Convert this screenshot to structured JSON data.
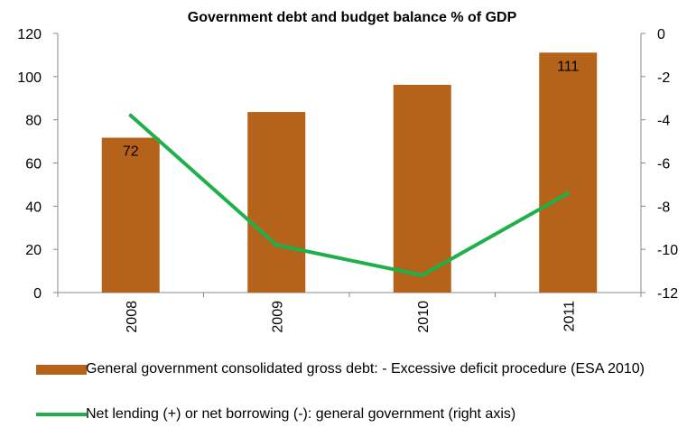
{
  "chart_data": {
    "type": "bar+line",
    "title": "Government debt and budget balance % of GDP",
    "categories": [
      "2008",
      "2009",
      "2010",
      "2011"
    ],
    "left_axis": {
      "ylim": [
        0,
        120
      ],
      "ticks": [
        "0",
        "20",
        "40",
        "60",
        "80",
        "100",
        "120"
      ]
    },
    "right_axis": {
      "ylim": [
        -12,
        0
      ],
      "ticks": [
        "-12",
        "-10",
        "-8",
        "-6",
        "-4",
        "-2",
        "0"
      ]
    },
    "series": [
      {
        "name": "General government consolidated gross debt: - Excessive deficit procedure (ESA 2010)",
        "type": "bar",
        "axis": "left",
        "color": "#b5621a",
        "values": [
          71.7,
          83.6,
          96.2,
          111.1
        ],
        "data_labels": [
          "72",
          "",
          "",
          "111"
        ]
      },
      {
        "name": "Net lending (+) or net borrowing (-): general government (right axis)",
        "type": "line",
        "axis": "right",
        "color": "#1fb04a",
        "values": [
          -3.8,
          -9.8,
          -11.2,
          -7.4
        ]
      }
    ],
    "grid": false,
    "legend_position": "bottom"
  }
}
